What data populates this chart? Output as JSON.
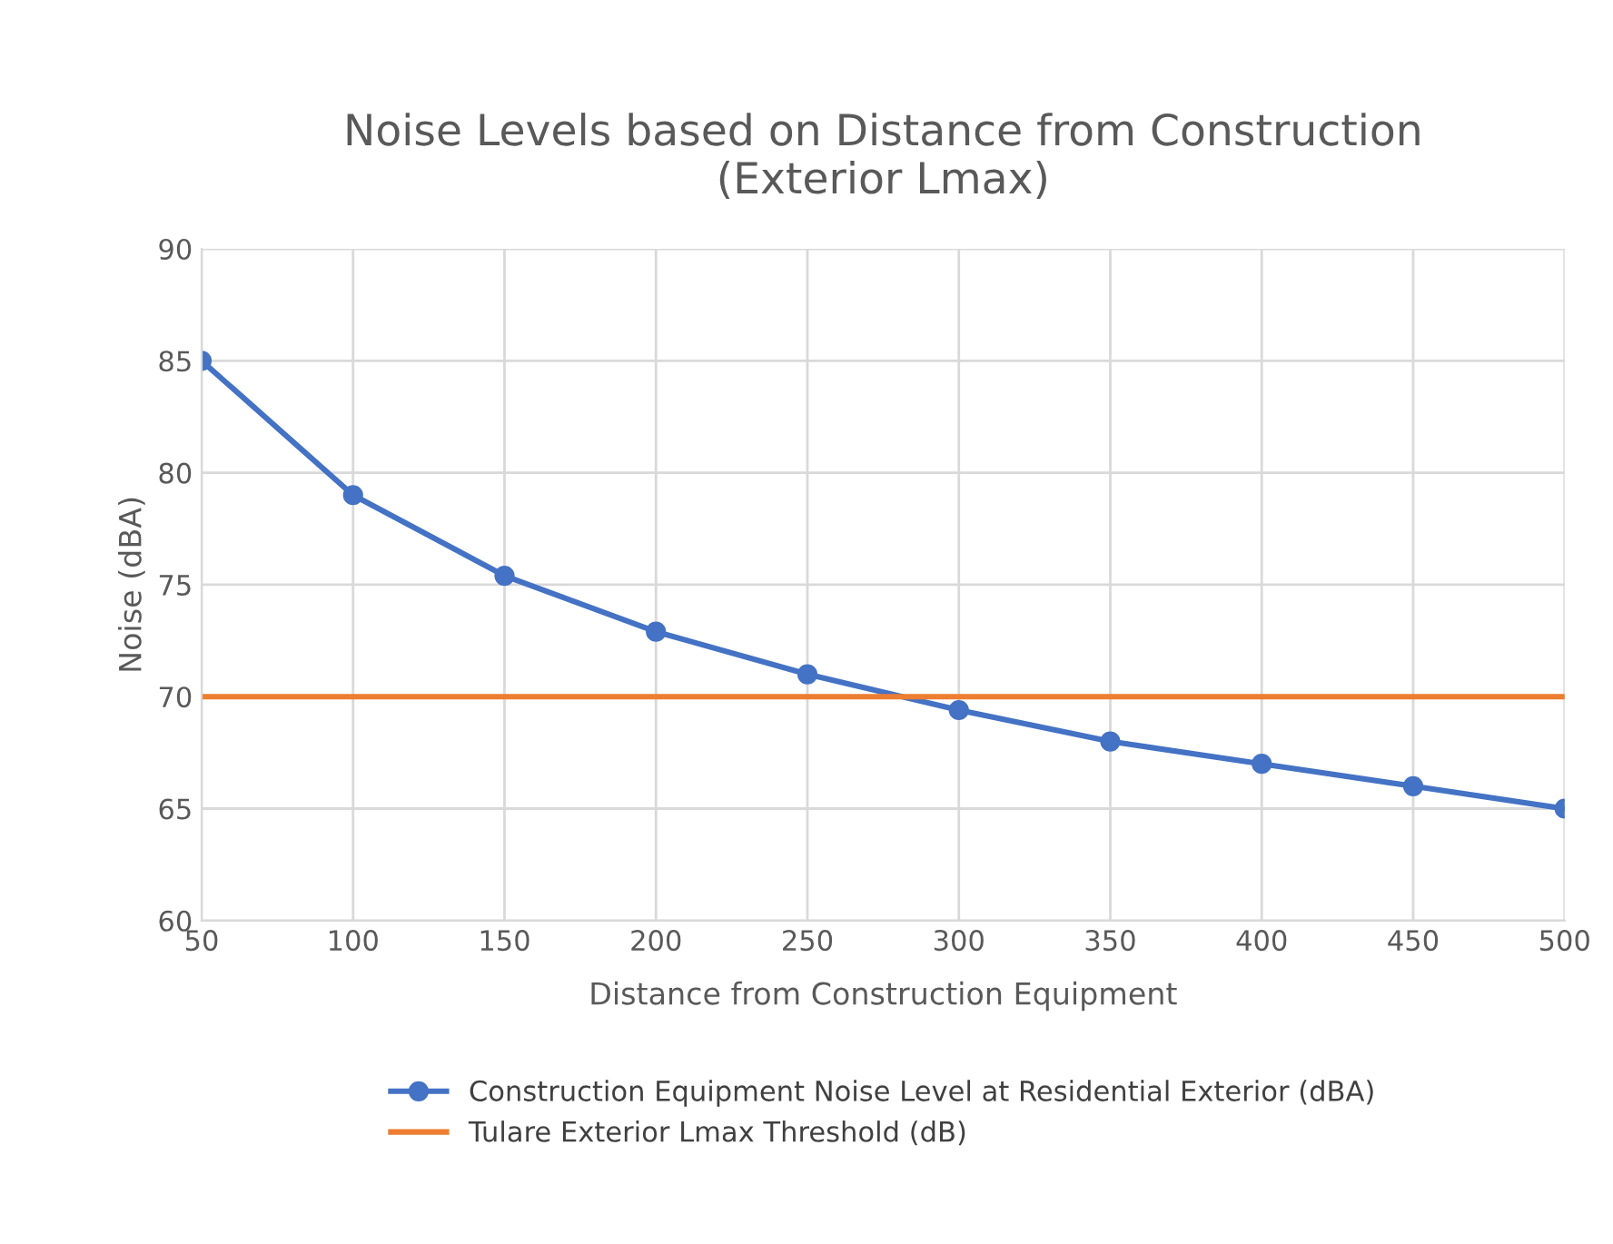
{
  "chart_data": {
    "type": "line",
    "title": "Noise Levels based on Distance from Construction\n(Exterior Lmax)",
    "xlabel": "Distance from Construction Equipment",
    "ylabel": "Noise (dBA)",
    "x": [
      50,
      100,
      150,
      200,
      250,
      300,
      350,
      400,
      450,
      500
    ],
    "series": [
      {
        "name": "Construction Equipment Noise Level at Residential Exterior (dBA)",
        "color": "#4472c4",
        "marker": "circle",
        "values": [
          85,
          79,
          75.4,
          72.9,
          71,
          69.4,
          68,
          67,
          66,
          65
        ]
      },
      {
        "name": "Tulare Exterior Lmax Threshold (dB)",
        "color": "#ed7d31",
        "marker": "none",
        "values": [
          70,
          70,
          70,
          70,
          70,
          70,
          70,
          70,
          70,
          70
        ]
      }
    ],
    "xlim": [
      50,
      500
    ],
    "xticks": [
      50,
      100,
      150,
      200,
      250,
      300,
      350,
      400,
      450,
      500
    ],
    "ylim": [
      60,
      90
    ],
    "yticks": [
      60,
      65,
      70,
      75,
      80,
      85,
      90
    ],
    "grid": true,
    "legend": "bottom",
    "line_style": "solid"
  }
}
